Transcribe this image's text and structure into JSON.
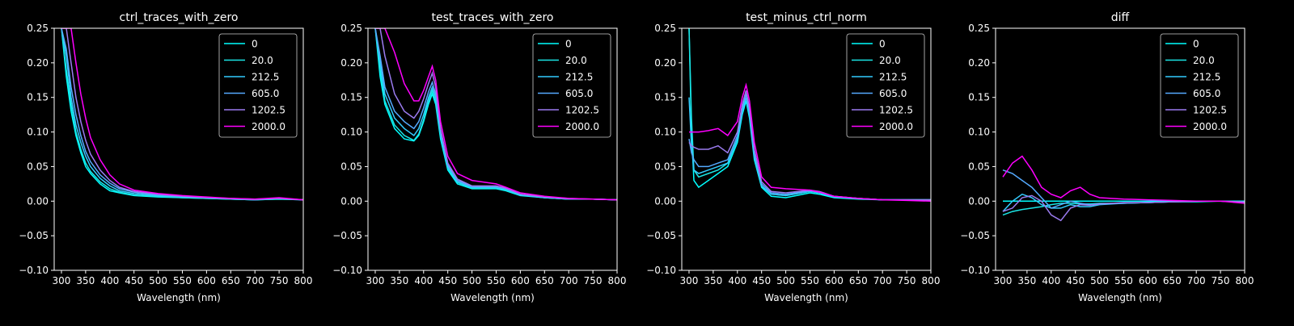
{
  "legend_labels": [
    "0",
    "20.0",
    "212.5",
    "605.0",
    "1202.5",
    "2000.0"
  ],
  "series_colors": [
    "#00ffff",
    "#1ae5e5",
    "#33ccff",
    "#55aaff",
    "#9b7bf0",
    "#ff00ff"
  ],
  "chart_data": [
    {
      "type": "line",
      "title": "ctrl_traces_with_zero",
      "xlabel": "Wavelength (nm)",
      "ylabel": "",
      "xlim": [
        285,
        800
      ],
      "ylim": [
        -0.1,
        0.25
      ],
      "xticks": [
        300,
        350,
        400,
        450,
        500,
        550,
        600,
        650,
        700,
        750,
        800
      ],
      "yticks": [
        -0.1,
        -0.05,
        0.0,
        0.05,
        0.1,
        0.15,
        0.2,
        0.25
      ],
      "ytick_labels": [
        "−0.10",
        "−0.05",
        "0.00",
        "0.05",
        "0.10",
        "0.15",
        "0.20",
        "0.25"
      ],
      "legend_position": "top-right",
      "x": [
        300,
        310,
        320,
        330,
        340,
        350,
        360,
        380,
        400,
        420,
        450,
        500,
        550,
        600,
        650,
        700,
        750,
        800
      ],
      "series": [
        {
          "name": "0",
          "values": [
            0.25,
            0.18,
            0.13,
            0.095,
            0.07,
            0.05,
            0.04,
            0.025,
            0.015,
            0.012,
            0.008,
            0.006,
            0.005,
            0.004,
            0.003,
            0.002,
            0.003,
            0.002
          ]
        },
        {
          "name": "20.0",
          "values": [
            0.25,
            0.19,
            0.14,
            0.1,
            0.075,
            0.055,
            0.043,
            0.028,
            0.018,
            0.013,
            0.009,
            0.007,
            0.005,
            0.004,
            0.003,
            0.002,
            0.003,
            0.002
          ]
        },
        {
          "name": "212.5",
          "values": [
            0.25,
            0.21,
            0.15,
            0.11,
            0.085,
            0.065,
            0.05,
            0.033,
            0.022,
            0.015,
            0.011,
            0.008,
            0.006,
            0.005,
            0.003,
            0.002,
            0.004,
            0.002
          ]
        },
        {
          "name": "605.0",
          "values": [
            0.25,
            0.22,
            0.165,
            0.125,
            0.095,
            0.072,
            0.057,
            0.038,
            0.026,
            0.018,
            0.013,
            0.009,
            0.007,
            0.005,
            0.004,
            0.002,
            0.004,
            0.002
          ]
        },
        {
          "name": "1202.5",
          "values": [
            0.25,
            0.25,
            0.2,
            0.15,
            0.115,
            0.088,
            0.068,
            0.045,
            0.03,
            0.02,
            0.014,
            0.01,
            0.007,
            0.005,
            0.004,
            0.003,
            0.004,
            0.002
          ]
        },
        {
          "name": "2000.0",
          "values": [
            0.25,
            0.25,
            0.25,
            0.2,
            0.155,
            0.12,
            0.092,
            0.06,
            0.038,
            0.025,
            0.016,
            0.011,
            0.008,
            0.006,
            0.004,
            0.003,
            0.005,
            0.002
          ]
        }
      ]
    },
    {
      "type": "line",
      "title": "test_traces_with_zero",
      "xlabel": "Wavelength (nm)",
      "ylabel": "",
      "xlim": [
        285,
        800
      ],
      "ylim": [
        -0.1,
        0.25
      ],
      "xticks": [
        300,
        350,
        400,
        450,
        500,
        550,
        600,
        650,
        700,
        750,
        800
      ],
      "yticks": [
        -0.1,
        -0.05,
        0.0,
        0.05,
        0.1,
        0.15,
        0.2,
        0.25
      ],
      "ytick_labels": [
        "−0.10",
        "−0.05",
        "0.00",
        "0.05",
        "0.10",
        "0.15",
        "0.20",
        "0.25"
      ],
      "legend_position": "top-right",
      "x": [
        300,
        310,
        320,
        340,
        360,
        380,
        390,
        400,
        410,
        418,
        425,
        435,
        450,
        470,
        500,
        550,
        570,
        600,
        650,
        700,
        750,
        800
      ],
      "series": [
        {
          "name": "0",
          "values": [
            0.25,
            0.18,
            0.14,
            0.105,
            0.09,
            0.087,
            0.095,
            0.115,
            0.14,
            0.155,
            0.14,
            0.09,
            0.045,
            0.025,
            0.018,
            0.018,
            0.015,
            0.008,
            0.005,
            0.003,
            0.003,
            0.002
          ]
        },
        {
          "name": "20.0",
          "values": [
            0.25,
            0.19,
            0.145,
            0.11,
            0.095,
            0.088,
            0.097,
            0.118,
            0.145,
            0.16,
            0.145,
            0.095,
            0.048,
            0.027,
            0.019,
            0.019,
            0.016,
            0.009,
            0.005,
            0.003,
            0.003,
            0.002
          ]
        },
        {
          "name": "212.5",
          "values": [
            0.25,
            0.2,
            0.155,
            0.12,
            0.105,
            0.095,
            0.105,
            0.125,
            0.15,
            0.165,
            0.15,
            0.098,
            0.05,
            0.028,
            0.02,
            0.02,
            0.017,
            0.009,
            0.005,
            0.003,
            0.003,
            0.002
          ]
        },
        {
          "name": "605.0",
          "values": [
            0.25,
            0.21,
            0.165,
            0.13,
            0.115,
            0.105,
            0.115,
            0.135,
            0.158,
            0.172,
            0.155,
            0.1,
            0.052,
            0.03,
            0.021,
            0.021,
            0.018,
            0.01,
            0.006,
            0.003,
            0.003,
            0.002
          ]
        },
        {
          "name": "1202.5",
          "values": [
            0.25,
            0.25,
            0.21,
            0.155,
            0.13,
            0.12,
            0.13,
            0.148,
            0.17,
            0.185,
            0.165,
            0.105,
            0.055,
            0.032,
            0.022,
            0.022,
            0.019,
            0.01,
            0.006,
            0.004,
            0.003,
            0.002
          ]
        },
        {
          "name": "2000.0",
          "values": [
            0.25,
            0.25,
            0.25,
            0.215,
            0.17,
            0.145,
            0.145,
            0.16,
            0.18,
            0.195,
            0.175,
            0.115,
            0.065,
            0.04,
            0.03,
            0.025,
            0.02,
            0.012,
            0.007,
            0.004,
            0.003,
            0.002
          ]
        }
      ]
    },
    {
      "type": "line",
      "title": "test_minus_ctrl_norm",
      "xlabel": "Wavelength (nm)",
      "ylabel": "",
      "xlim": [
        285,
        800
      ],
      "ylim": [
        -0.1,
        0.25
      ],
      "xticks": [
        300,
        350,
        400,
        450,
        500,
        550,
        600,
        650,
        700,
        750,
        800
      ],
      "yticks": [
        -0.1,
        -0.05,
        0.0,
        0.05,
        0.1,
        0.15,
        0.2,
        0.25
      ],
      "ytick_labels": [
        "−0.10",
        "−0.05",
        "0.00",
        "0.05",
        "0.10",
        "0.15",
        "0.20",
        "0.25"
      ],
      "legend_position": "top-right",
      "x": [
        300,
        305,
        310,
        320,
        340,
        360,
        380,
        400,
        410,
        418,
        425,
        435,
        450,
        470,
        500,
        550,
        570,
        600,
        650,
        700,
        750,
        800
      ],
      "series": [
        {
          "name": "0",
          "values": [
            0.25,
            0.1,
            0.03,
            0.02,
            0.03,
            0.04,
            0.05,
            0.085,
            0.125,
            0.145,
            0.12,
            0.06,
            0.02,
            0.007,
            0.005,
            0.012,
            0.01,
            0.005,
            0.003,
            0.002,
            0.002,
            0.002
          ]
        },
        {
          "name": "20.0",
          "values": [
            0.25,
            0.12,
            0.045,
            0.035,
            0.04,
            0.045,
            0.055,
            0.09,
            0.13,
            0.15,
            0.125,
            0.065,
            0.022,
            0.01,
            0.008,
            0.014,
            0.012,
            0.006,
            0.004,
            0.002,
            0.002,
            0.002
          ]
        },
        {
          "name": "212.5",
          "values": [
            0.15,
            0.08,
            0.045,
            0.04,
            0.045,
            0.05,
            0.055,
            0.09,
            0.13,
            0.15,
            0.125,
            0.065,
            0.022,
            0.01,
            0.008,
            0.014,
            0.012,
            0.006,
            0.004,
            0.002,
            0.002,
            0.002
          ]
        },
        {
          "name": "605.0",
          "values": [
            0.09,
            0.07,
            0.06,
            0.05,
            0.05,
            0.055,
            0.06,
            0.095,
            0.135,
            0.155,
            0.13,
            0.07,
            0.025,
            0.012,
            0.01,
            0.015,
            0.013,
            0.007,
            0.004,
            0.002,
            0.002,
            0.002
          ]
        },
        {
          "name": "1202.5",
          "values": [
            0.085,
            0.08,
            0.078,
            0.075,
            0.075,
            0.08,
            0.07,
            0.1,
            0.14,
            0.16,
            0.135,
            0.075,
            0.028,
            0.014,
            0.012,
            0.016,
            0.014,
            0.007,
            0.004,
            0.002,
            0.002,
            0.002
          ]
        },
        {
          "name": "2000.0",
          "values": [
            0.1,
            0.1,
            0.1,
            0.1,
            0.102,
            0.105,
            0.095,
            0.115,
            0.15,
            0.168,
            0.145,
            0.085,
            0.035,
            0.02,
            0.018,
            0.016,
            0.013,
            0.007,
            0.004,
            0.002,
            0.001,
            0.0
          ]
        }
      ]
    },
    {
      "type": "line",
      "title": "diff",
      "xlabel": "Wavelength (nm)",
      "ylabel": "",
      "xlim": [
        285,
        800
      ],
      "ylim": [
        -0.1,
        0.25
      ],
      "xticks": [
        300,
        350,
        400,
        450,
        500,
        550,
        600,
        650,
        700,
        750,
        800
      ],
      "yticks": [
        -0.1,
        -0.05,
        0.0,
        0.05,
        0.1,
        0.15,
        0.2,
        0.25
      ],
      "ytick_labels": [
        "−0.10",
        "−0.05",
        "0.00",
        "0.05",
        "0.10",
        "0.15",
        "0.20",
        "0.25"
      ],
      "legend_position": "top-right",
      "x": [
        300,
        320,
        340,
        360,
        380,
        400,
        420,
        440,
        460,
        480,
        500,
        550,
        600,
        650,
        700,
        750,
        800
      ],
      "series": [
        {
          "name": "0",
          "values": [
            0.0,
            0.0,
            0.0,
            0.0,
            0.0,
            0.0,
            0.0,
            0.0,
            0.0,
            0.0,
            0.0,
            0.0,
            0.0,
            0.0,
            0.0,
            0.0,
            0.0
          ]
        },
        {
          "name": "20.0",
          "values": [
            -0.02,
            -0.015,
            -0.012,
            -0.01,
            -0.008,
            -0.005,
            -0.003,
            -0.003,
            -0.004,
            -0.004,
            -0.003,
            -0.003,
            -0.002,
            -0.001,
            -0.001,
            0.0,
            -0.001
          ]
        },
        {
          "name": "212.5",
          "values": [
            -0.015,
            0.0,
            0.01,
            0.005,
            -0.005,
            -0.01,
            -0.01,
            -0.005,
            -0.008,
            -0.008,
            -0.005,
            -0.003,
            -0.002,
            -0.001,
            0.0,
            0.0,
            -0.001
          ]
        },
        {
          "name": "605.0",
          "values": [
            0.045,
            0.04,
            0.03,
            0.02,
            0.005,
            -0.01,
            -0.005,
            0.0,
            -0.003,
            -0.005,
            -0.004,
            -0.003,
            -0.002,
            -0.001,
            0.0,
            0.0,
            -0.001
          ]
        },
        {
          "name": "1202.5",
          "values": [
            -0.015,
            -0.01,
            0.005,
            0.008,
            0.0,
            -0.02,
            -0.028,
            -0.01,
            -0.005,
            -0.006,
            -0.004,
            -0.002,
            -0.002,
            -0.001,
            0.0,
            0.0,
            -0.001
          ]
        },
        {
          "name": "2000.0",
          "values": [
            0.035,
            0.055,
            0.065,
            0.045,
            0.02,
            0.01,
            0.005,
            0.015,
            0.02,
            0.01,
            0.005,
            0.003,
            0.002,
            0.001,
            0.0,
            0.0,
            -0.003
          ]
        }
      ]
    }
  ]
}
